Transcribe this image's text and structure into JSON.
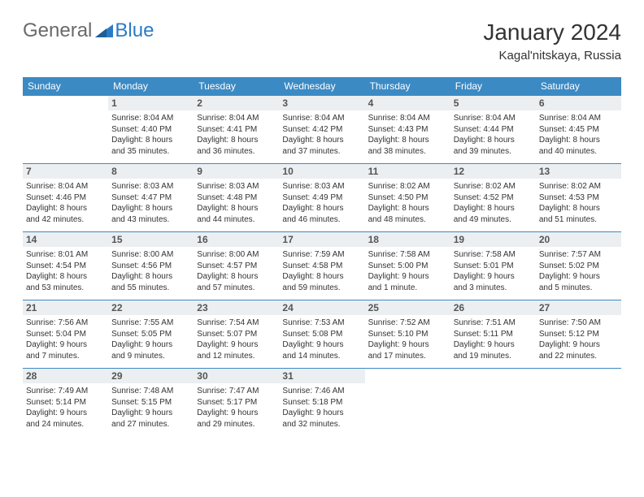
{
  "logo": {
    "text1": "General",
    "text2": "Blue"
  },
  "title": "January 2024",
  "location": "Kagal'nitskaya, Russia",
  "colors": {
    "header_bg": "#3b8ac4",
    "header_text": "#ffffff",
    "daynum_bg": "#eceff1",
    "border": "#3b8ac4",
    "logo_gray": "#6a6a6a",
    "logo_blue": "#2b7bc4"
  },
  "weekdays": [
    "Sunday",
    "Monday",
    "Tuesday",
    "Wednesday",
    "Thursday",
    "Friday",
    "Saturday"
  ],
  "weeks": [
    [
      {
        "n": "",
        "sr": "",
        "ss": "",
        "dl1": "",
        "dl2": ""
      },
      {
        "n": "1",
        "sr": "Sunrise: 8:04 AM",
        "ss": "Sunset: 4:40 PM",
        "dl1": "Daylight: 8 hours",
        "dl2": "and 35 minutes."
      },
      {
        "n": "2",
        "sr": "Sunrise: 8:04 AM",
        "ss": "Sunset: 4:41 PM",
        "dl1": "Daylight: 8 hours",
        "dl2": "and 36 minutes."
      },
      {
        "n": "3",
        "sr": "Sunrise: 8:04 AM",
        "ss": "Sunset: 4:42 PM",
        "dl1": "Daylight: 8 hours",
        "dl2": "and 37 minutes."
      },
      {
        "n": "4",
        "sr": "Sunrise: 8:04 AM",
        "ss": "Sunset: 4:43 PM",
        "dl1": "Daylight: 8 hours",
        "dl2": "and 38 minutes."
      },
      {
        "n": "5",
        "sr": "Sunrise: 8:04 AM",
        "ss": "Sunset: 4:44 PM",
        "dl1": "Daylight: 8 hours",
        "dl2": "and 39 minutes."
      },
      {
        "n": "6",
        "sr": "Sunrise: 8:04 AM",
        "ss": "Sunset: 4:45 PM",
        "dl1": "Daylight: 8 hours",
        "dl2": "and 40 minutes."
      }
    ],
    [
      {
        "n": "7",
        "sr": "Sunrise: 8:04 AM",
        "ss": "Sunset: 4:46 PM",
        "dl1": "Daylight: 8 hours",
        "dl2": "and 42 minutes."
      },
      {
        "n": "8",
        "sr": "Sunrise: 8:03 AM",
        "ss": "Sunset: 4:47 PM",
        "dl1": "Daylight: 8 hours",
        "dl2": "and 43 minutes."
      },
      {
        "n": "9",
        "sr": "Sunrise: 8:03 AM",
        "ss": "Sunset: 4:48 PM",
        "dl1": "Daylight: 8 hours",
        "dl2": "and 44 minutes."
      },
      {
        "n": "10",
        "sr": "Sunrise: 8:03 AM",
        "ss": "Sunset: 4:49 PM",
        "dl1": "Daylight: 8 hours",
        "dl2": "and 46 minutes."
      },
      {
        "n": "11",
        "sr": "Sunrise: 8:02 AM",
        "ss": "Sunset: 4:50 PM",
        "dl1": "Daylight: 8 hours",
        "dl2": "and 48 minutes."
      },
      {
        "n": "12",
        "sr": "Sunrise: 8:02 AM",
        "ss": "Sunset: 4:52 PM",
        "dl1": "Daylight: 8 hours",
        "dl2": "and 49 minutes."
      },
      {
        "n": "13",
        "sr": "Sunrise: 8:02 AM",
        "ss": "Sunset: 4:53 PM",
        "dl1": "Daylight: 8 hours",
        "dl2": "and 51 minutes."
      }
    ],
    [
      {
        "n": "14",
        "sr": "Sunrise: 8:01 AM",
        "ss": "Sunset: 4:54 PM",
        "dl1": "Daylight: 8 hours",
        "dl2": "and 53 minutes."
      },
      {
        "n": "15",
        "sr": "Sunrise: 8:00 AM",
        "ss": "Sunset: 4:56 PM",
        "dl1": "Daylight: 8 hours",
        "dl2": "and 55 minutes."
      },
      {
        "n": "16",
        "sr": "Sunrise: 8:00 AM",
        "ss": "Sunset: 4:57 PM",
        "dl1": "Daylight: 8 hours",
        "dl2": "and 57 minutes."
      },
      {
        "n": "17",
        "sr": "Sunrise: 7:59 AM",
        "ss": "Sunset: 4:58 PM",
        "dl1": "Daylight: 8 hours",
        "dl2": "and 59 minutes."
      },
      {
        "n": "18",
        "sr": "Sunrise: 7:58 AM",
        "ss": "Sunset: 5:00 PM",
        "dl1": "Daylight: 9 hours",
        "dl2": "and 1 minute."
      },
      {
        "n": "19",
        "sr": "Sunrise: 7:58 AM",
        "ss": "Sunset: 5:01 PM",
        "dl1": "Daylight: 9 hours",
        "dl2": "and 3 minutes."
      },
      {
        "n": "20",
        "sr": "Sunrise: 7:57 AM",
        "ss": "Sunset: 5:02 PM",
        "dl1": "Daylight: 9 hours",
        "dl2": "and 5 minutes."
      }
    ],
    [
      {
        "n": "21",
        "sr": "Sunrise: 7:56 AM",
        "ss": "Sunset: 5:04 PM",
        "dl1": "Daylight: 9 hours",
        "dl2": "and 7 minutes."
      },
      {
        "n": "22",
        "sr": "Sunrise: 7:55 AM",
        "ss": "Sunset: 5:05 PM",
        "dl1": "Daylight: 9 hours",
        "dl2": "and 9 minutes."
      },
      {
        "n": "23",
        "sr": "Sunrise: 7:54 AM",
        "ss": "Sunset: 5:07 PM",
        "dl1": "Daylight: 9 hours",
        "dl2": "and 12 minutes."
      },
      {
        "n": "24",
        "sr": "Sunrise: 7:53 AM",
        "ss": "Sunset: 5:08 PM",
        "dl1": "Daylight: 9 hours",
        "dl2": "and 14 minutes."
      },
      {
        "n": "25",
        "sr": "Sunrise: 7:52 AM",
        "ss": "Sunset: 5:10 PM",
        "dl1": "Daylight: 9 hours",
        "dl2": "and 17 minutes."
      },
      {
        "n": "26",
        "sr": "Sunrise: 7:51 AM",
        "ss": "Sunset: 5:11 PM",
        "dl1": "Daylight: 9 hours",
        "dl2": "and 19 minutes."
      },
      {
        "n": "27",
        "sr": "Sunrise: 7:50 AM",
        "ss": "Sunset: 5:12 PM",
        "dl1": "Daylight: 9 hours",
        "dl2": "and 22 minutes."
      }
    ],
    [
      {
        "n": "28",
        "sr": "Sunrise: 7:49 AM",
        "ss": "Sunset: 5:14 PM",
        "dl1": "Daylight: 9 hours",
        "dl2": "and 24 minutes."
      },
      {
        "n": "29",
        "sr": "Sunrise: 7:48 AM",
        "ss": "Sunset: 5:15 PM",
        "dl1": "Daylight: 9 hours",
        "dl2": "and 27 minutes."
      },
      {
        "n": "30",
        "sr": "Sunrise: 7:47 AM",
        "ss": "Sunset: 5:17 PM",
        "dl1": "Daylight: 9 hours",
        "dl2": "and 29 minutes."
      },
      {
        "n": "31",
        "sr": "Sunrise: 7:46 AM",
        "ss": "Sunset: 5:18 PM",
        "dl1": "Daylight: 9 hours",
        "dl2": "and 32 minutes."
      },
      {
        "n": "",
        "sr": "",
        "ss": "",
        "dl1": "",
        "dl2": ""
      },
      {
        "n": "",
        "sr": "",
        "ss": "",
        "dl1": "",
        "dl2": ""
      },
      {
        "n": "",
        "sr": "",
        "ss": "",
        "dl1": "",
        "dl2": ""
      }
    ]
  ]
}
